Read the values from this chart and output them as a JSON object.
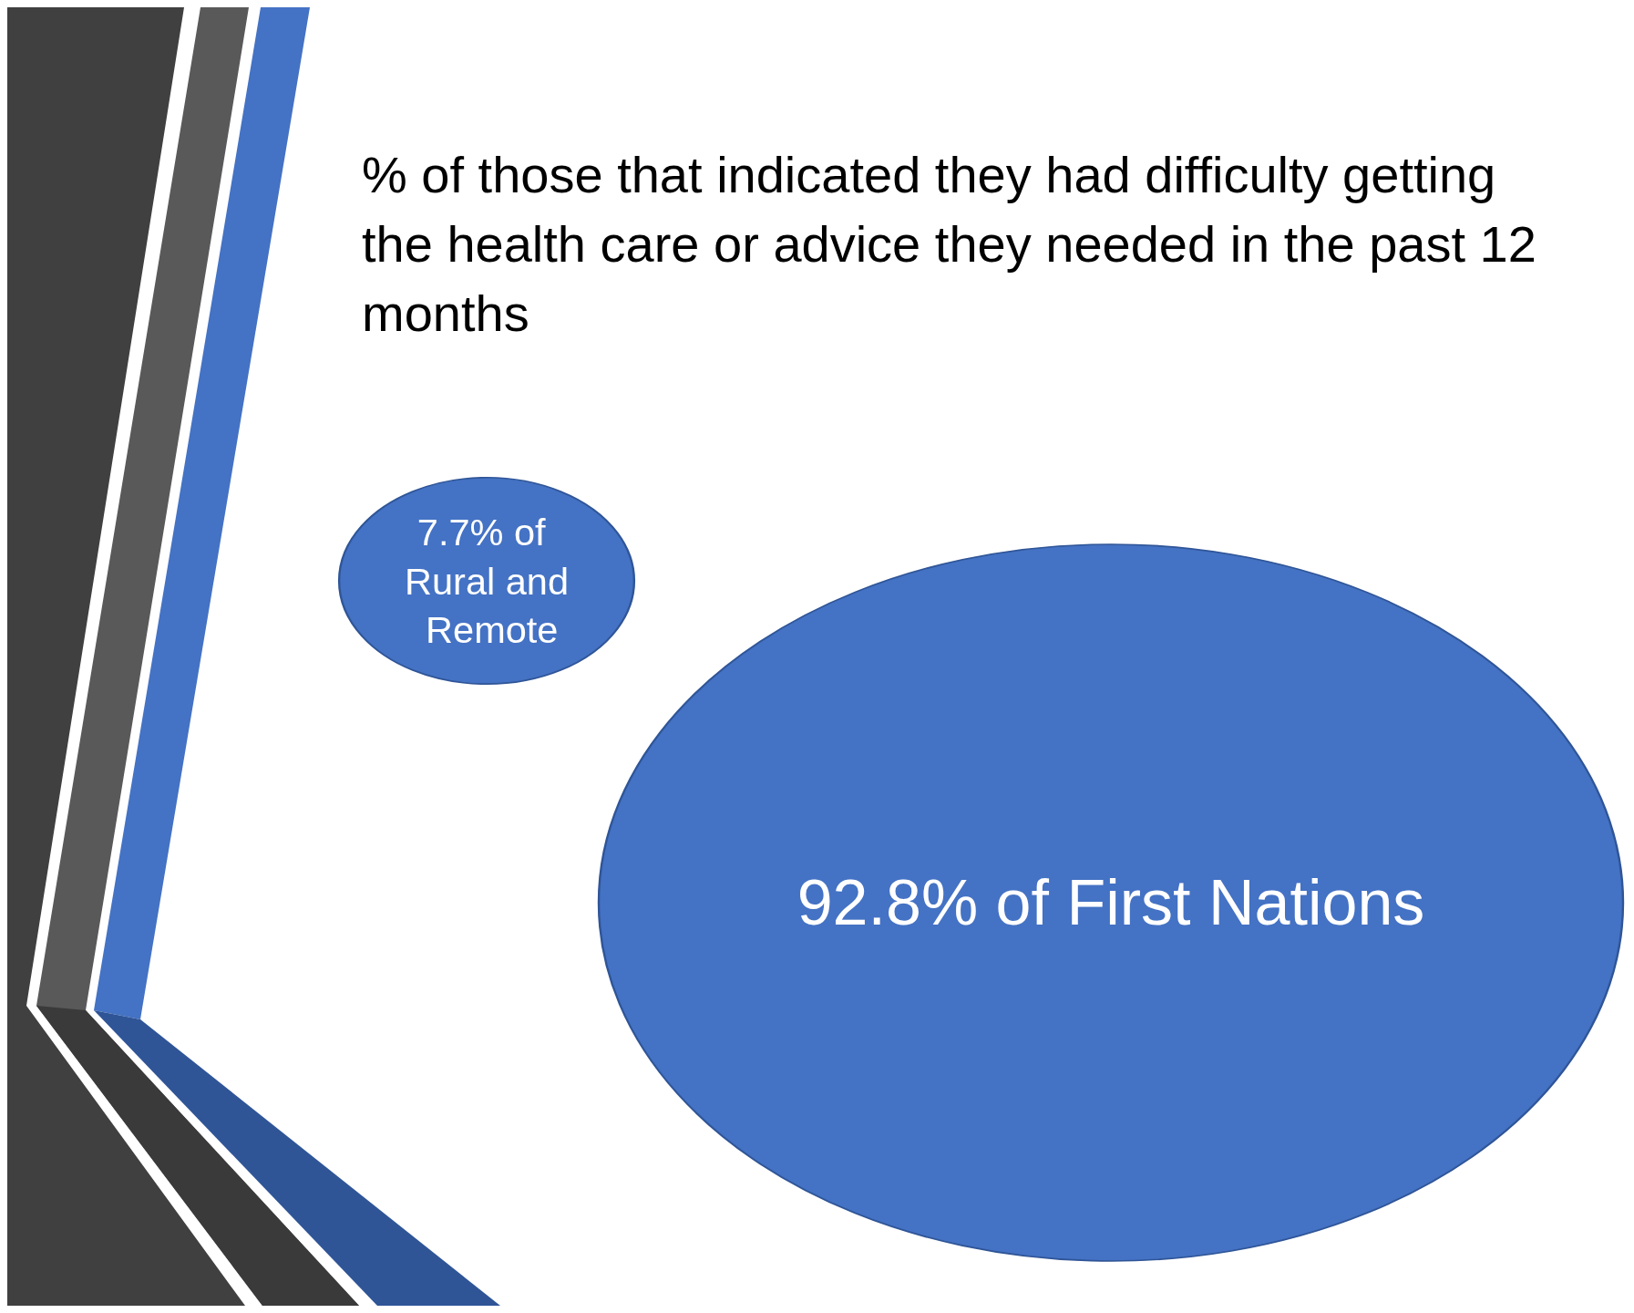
{
  "chart_data": {
    "type": "other",
    "title": "% of those that indicated they had difficulty getting the health care or advice they needed in the past 12 months",
    "values": [
      7.7,
      92.8
    ],
    "value_labels": [
      "7.7% of Rural and Remote",
      "92.8% of First Nations"
    ],
    "color": "#4472c4"
  }
}
